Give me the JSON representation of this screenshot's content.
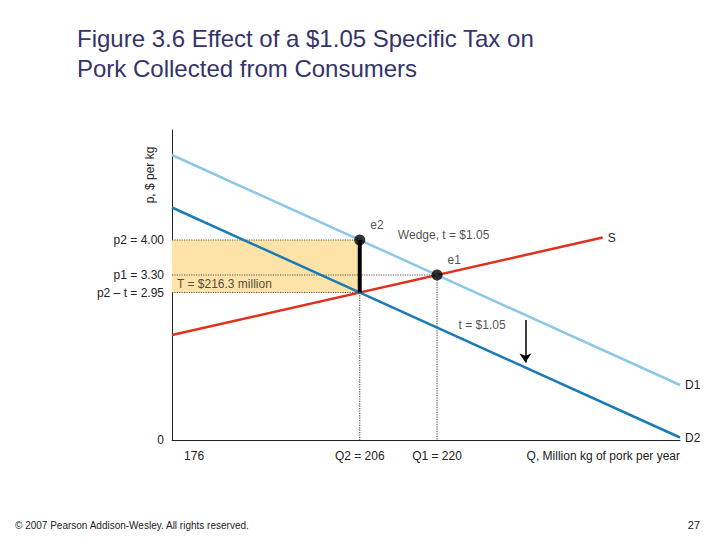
{
  "chart_data": {
    "type": "line",
    "title": "Figure 3.6 Effect of a $1.05 Specific Tax on Pork Collected from Consumers",
    "x_label": "Q, Million kg of pork per year",
    "y_label": "p, $ per kg",
    "marker": "none",
    "grid": false,
    "xlim": [
      172,
      264
    ],
    "xticks": [
      176,
      {
        "value": 206,
        "label": "Q2 = 206"
      },
      {
        "value": 220,
        "label": "Q1 = 220"
      }
    ],
    "ylim": [
      0,
      6.2
    ],
    "yticks": [
      0,
      {
        "value": 2.95,
        "label": "p2 – t = 2.95"
      },
      {
        "value": 3.3,
        "label": "p1 = 3.30"
      },
      {
        "value": 4.0,
        "label": "p2 = 4.00"
      }
    ],
    "series": [
      {
        "name": "S",
        "color": "#e0301e",
        "x": [
          172,
          250
        ],
        "values": [
          2.1,
          4.05
        ]
      },
      {
        "name": "D1",
        "color": "#8cc8e6",
        "x": [
          172,
          264
        ],
        "values": [
          5.7,
          1.1
        ]
      },
      {
        "name": "D2",
        "color": "#1b7bb4",
        "x": [
          172,
          264
        ],
        "values": [
          4.65,
          0.05
        ]
      }
    ],
    "points": [
      {
        "label": "e1",
        "x": 220,
        "y": 3.3
      },
      {
        "label": "e2",
        "x": 206,
        "y": 4.0
      }
    ],
    "wedge": {
      "x": 206,
      "y_from": 2.95,
      "y_to": 4.0
    },
    "tax_area": {
      "x": [
        172,
        206
      ],
      "y": [
        2.95,
        4.0
      ],
      "color": "#fde3a7"
    },
    "tax_arrow": {
      "x": 236,
      "y_from": 2.4,
      "y_to": 1.55
    },
    "annotations": [
      {
        "text": "Wedge, t = $1.05",
        "x": 212,
        "y": 4.1
      },
      {
        "text": "T = $216.3 million",
        "x": 172,
        "y": 3.12
      },
      {
        "text": "t = $1.05",
        "x": 223,
        "y": 2.3
      }
    ],
    "footer": "© 2007 Pearson Addison-Wesley. All rights reserved.",
    "page_number": "27"
  }
}
